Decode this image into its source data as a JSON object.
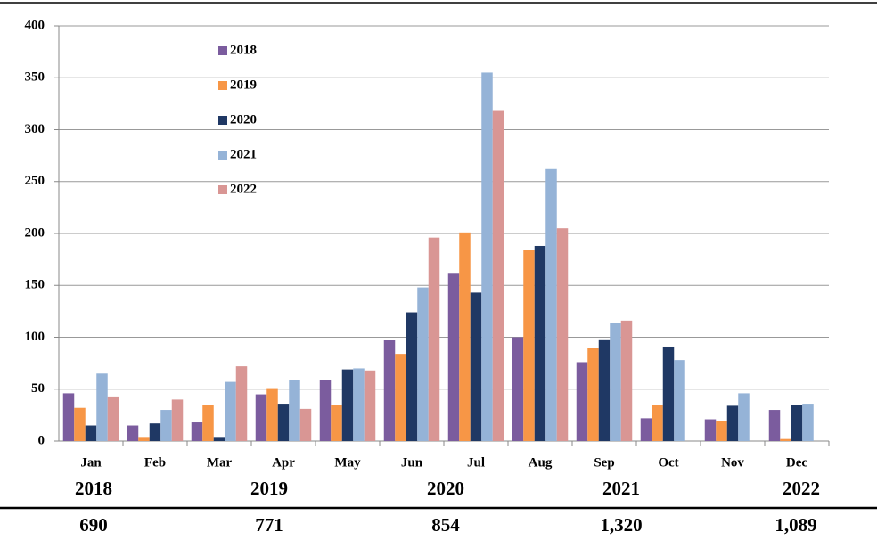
{
  "chart_data": {
    "type": "bar",
    "categories": [
      "Jan",
      "Feb",
      "Mar",
      "Apr",
      "May",
      "Jun",
      "Jul",
      "Aug",
      "Sep",
      "Oct",
      "Nov",
      "Dec"
    ],
    "series": [
      {
        "name": "2018",
        "color": "#7b5c9e",
        "values": [
          46,
          15,
          18,
          45,
          59,
          97,
          162,
          100,
          76,
          22,
          21,
          30
        ]
      },
      {
        "name": "2019",
        "color": "#f79646",
        "values": [
          32,
          4,
          35,
          51,
          35,
          84,
          201,
          184,
          90,
          35,
          19,
          2
        ]
      },
      {
        "name": "2020",
        "color": "#1f3864",
        "values": [
          15,
          17,
          4,
          36,
          69,
          124,
          143,
          188,
          98,
          91,
          34,
          35
        ]
      },
      {
        "name": "2021",
        "color": "#95b3d7",
        "values": [
          65,
          30,
          57,
          59,
          70,
          148,
          355,
          262,
          114,
          78,
          46,
          36
        ]
      },
      {
        "name": "2022",
        "color": "#d99694",
        "values": [
          43,
          40,
          72,
          31,
          68,
          196,
          318,
          205,
          116,
          null,
          null,
          null
        ]
      }
    ],
    "ylim": [
      0,
      400
    ],
    "yticks": [
      0,
      50,
      100,
      150,
      200,
      250,
      300,
      350,
      400
    ],
    "grid": true
  },
  "summary": {
    "years": [
      "2018",
      "2019",
      "2020",
      "2021",
      "2022"
    ],
    "totals": [
      "690",
      "771",
      "854",
      "1,320",
      "1,089"
    ]
  }
}
